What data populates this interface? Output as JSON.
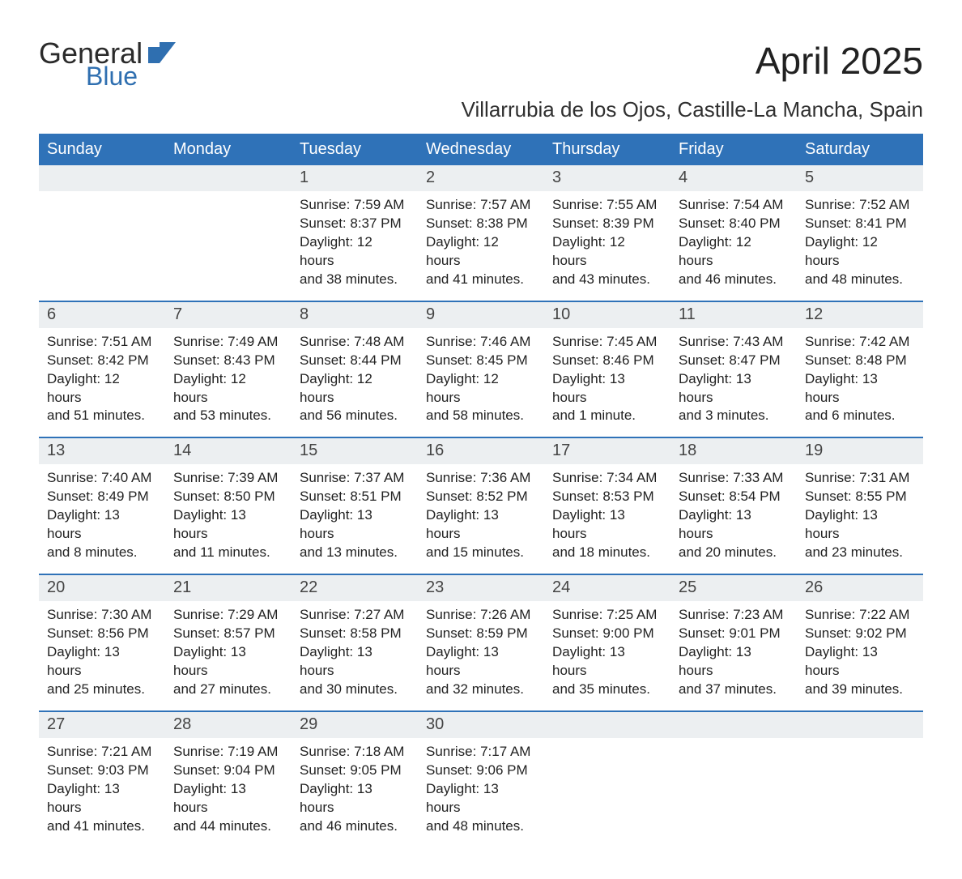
{
  "logo": {
    "word1": "General",
    "word2": "Blue",
    "brand_color": "#2f6fb0"
  },
  "title": "April 2025",
  "location": "Villarrubia de los Ojos, Castille-La Mancha, Spain",
  "colors": {
    "header_bg": "#2f72b8",
    "header_text": "#ffffff",
    "daynum_bg": "#eceff1",
    "week_border": "#2f72b8",
    "body_text": "#212121",
    "page_bg": "#ffffff"
  },
  "calendar": {
    "type": "table",
    "columns": [
      "Sunday",
      "Monday",
      "Tuesday",
      "Wednesday",
      "Thursday",
      "Friday",
      "Saturday"
    ],
    "weeks": [
      [
        null,
        null,
        {
          "n": "1",
          "sunrise": "Sunrise: 7:59 AM",
          "sunset": "Sunset: 8:37 PM",
          "day1": "Daylight: 12 hours",
          "day2": "and 38 minutes."
        },
        {
          "n": "2",
          "sunrise": "Sunrise: 7:57 AM",
          "sunset": "Sunset: 8:38 PM",
          "day1": "Daylight: 12 hours",
          "day2": "and 41 minutes."
        },
        {
          "n": "3",
          "sunrise": "Sunrise: 7:55 AM",
          "sunset": "Sunset: 8:39 PM",
          "day1": "Daylight: 12 hours",
          "day2": "and 43 minutes."
        },
        {
          "n": "4",
          "sunrise": "Sunrise: 7:54 AM",
          "sunset": "Sunset: 8:40 PM",
          "day1": "Daylight: 12 hours",
          "day2": "and 46 minutes."
        },
        {
          "n": "5",
          "sunrise": "Sunrise: 7:52 AM",
          "sunset": "Sunset: 8:41 PM",
          "day1": "Daylight: 12 hours",
          "day2": "and 48 minutes."
        }
      ],
      [
        {
          "n": "6",
          "sunrise": "Sunrise: 7:51 AM",
          "sunset": "Sunset: 8:42 PM",
          "day1": "Daylight: 12 hours",
          "day2": "and 51 minutes."
        },
        {
          "n": "7",
          "sunrise": "Sunrise: 7:49 AM",
          "sunset": "Sunset: 8:43 PM",
          "day1": "Daylight: 12 hours",
          "day2": "and 53 minutes."
        },
        {
          "n": "8",
          "sunrise": "Sunrise: 7:48 AM",
          "sunset": "Sunset: 8:44 PM",
          "day1": "Daylight: 12 hours",
          "day2": "and 56 minutes."
        },
        {
          "n": "9",
          "sunrise": "Sunrise: 7:46 AM",
          "sunset": "Sunset: 8:45 PM",
          "day1": "Daylight: 12 hours",
          "day2": "and 58 minutes."
        },
        {
          "n": "10",
          "sunrise": "Sunrise: 7:45 AM",
          "sunset": "Sunset: 8:46 PM",
          "day1": "Daylight: 13 hours",
          "day2": "and 1 minute."
        },
        {
          "n": "11",
          "sunrise": "Sunrise: 7:43 AM",
          "sunset": "Sunset: 8:47 PM",
          "day1": "Daylight: 13 hours",
          "day2": "and 3 minutes."
        },
        {
          "n": "12",
          "sunrise": "Sunrise: 7:42 AM",
          "sunset": "Sunset: 8:48 PM",
          "day1": "Daylight: 13 hours",
          "day2": "and 6 minutes."
        }
      ],
      [
        {
          "n": "13",
          "sunrise": "Sunrise: 7:40 AM",
          "sunset": "Sunset: 8:49 PM",
          "day1": "Daylight: 13 hours",
          "day2": "and 8 minutes."
        },
        {
          "n": "14",
          "sunrise": "Sunrise: 7:39 AM",
          "sunset": "Sunset: 8:50 PM",
          "day1": "Daylight: 13 hours",
          "day2": "and 11 minutes."
        },
        {
          "n": "15",
          "sunrise": "Sunrise: 7:37 AM",
          "sunset": "Sunset: 8:51 PM",
          "day1": "Daylight: 13 hours",
          "day2": "and 13 minutes."
        },
        {
          "n": "16",
          "sunrise": "Sunrise: 7:36 AM",
          "sunset": "Sunset: 8:52 PM",
          "day1": "Daylight: 13 hours",
          "day2": "and 15 minutes."
        },
        {
          "n": "17",
          "sunrise": "Sunrise: 7:34 AM",
          "sunset": "Sunset: 8:53 PM",
          "day1": "Daylight: 13 hours",
          "day2": "and 18 minutes."
        },
        {
          "n": "18",
          "sunrise": "Sunrise: 7:33 AM",
          "sunset": "Sunset: 8:54 PM",
          "day1": "Daylight: 13 hours",
          "day2": "and 20 minutes."
        },
        {
          "n": "19",
          "sunrise": "Sunrise: 7:31 AM",
          "sunset": "Sunset: 8:55 PM",
          "day1": "Daylight: 13 hours",
          "day2": "and 23 minutes."
        }
      ],
      [
        {
          "n": "20",
          "sunrise": "Sunrise: 7:30 AM",
          "sunset": "Sunset: 8:56 PM",
          "day1": "Daylight: 13 hours",
          "day2": "and 25 minutes."
        },
        {
          "n": "21",
          "sunrise": "Sunrise: 7:29 AM",
          "sunset": "Sunset: 8:57 PM",
          "day1": "Daylight: 13 hours",
          "day2": "and 27 minutes."
        },
        {
          "n": "22",
          "sunrise": "Sunrise: 7:27 AM",
          "sunset": "Sunset: 8:58 PM",
          "day1": "Daylight: 13 hours",
          "day2": "and 30 minutes."
        },
        {
          "n": "23",
          "sunrise": "Sunrise: 7:26 AM",
          "sunset": "Sunset: 8:59 PM",
          "day1": "Daylight: 13 hours",
          "day2": "and 32 minutes."
        },
        {
          "n": "24",
          "sunrise": "Sunrise: 7:25 AM",
          "sunset": "Sunset: 9:00 PM",
          "day1": "Daylight: 13 hours",
          "day2": "and 35 minutes."
        },
        {
          "n": "25",
          "sunrise": "Sunrise: 7:23 AM",
          "sunset": "Sunset: 9:01 PM",
          "day1": "Daylight: 13 hours",
          "day2": "and 37 minutes."
        },
        {
          "n": "26",
          "sunrise": "Sunrise: 7:22 AM",
          "sunset": "Sunset: 9:02 PM",
          "day1": "Daylight: 13 hours",
          "day2": "and 39 minutes."
        }
      ],
      [
        {
          "n": "27",
          "sunrise": "Sunrise: 7:21 AM",
          "sunset": "Sunset: 9:03 PM",
          "day1": "Daylight: 13 hours",
          "day2": "and 41 minutes."
        },
        {
          "n": "28",
          "sunrise": "Sunrise: 7:19 AM",
          "sunset": "Sunset: 9:04 PM",
          "day1": "Daylight: 13 hours",
          "day2": "and 44 minutes."
        },
        {
          "n": "29",
          "sunrise": "Sunrise: 7:18 AM",
          "sunset": "Sunset: 9:05 PM",
          "day1": "Daylight: 13 hours",
          "day2": "and 46 minutes."
        },
        {
          "n": "30",
          "sunrise": "Sunrise: 7:17 AM",
          "sunset": "Sunset: 9:06 PM",
          "day1": "Daylight: 13 hours",
          "day2": "and 48 minutes."
        },
        null,
        null,
        null
      ]
    ]
  }
}
